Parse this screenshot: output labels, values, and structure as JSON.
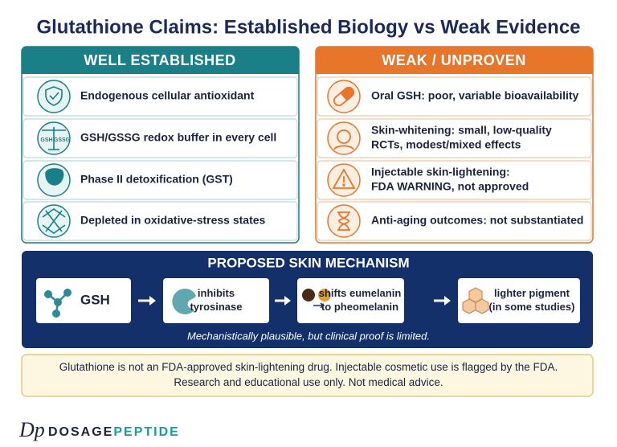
{
  "title": "Glutathione Claims: Established Biology vs Weak Evidence",
  "established": {
    "heading": "WELL ESTABLISHED",
    "icon_labels": [
      "GSH",
      "GSSG"
    ],
    "items": [
      [
        "Endogenous cellular antioxidant"
      ],
      [
        "GSH/GSSG redox buffer in every cell"
      ],
      [
        "Phase II detoxification (GST)"
      ],
      [
        "Depleted in oxidative-stress states"
      ]
    ]
  },
  "weak": {
    "heading": "WEAK / UNPROVEN",
    "items": [
      [
        "Oral GSH: poor, variable bioavailability"
      ],
      [
        "Skin-whitening: small, low-quality",
        "RCTs, modest/mixed effects"
      ],
      [
        "Injectable skin-lightening:",
        "FDA WARNING, not approved"
      ],
      [
        "Anti-aging outcomes: not substantiated"
      ]
    ]
  },
  "mechanism": {
    "heading": "PROPOSED SKIN MECHANISM",
    "steps": [
      [
        "GSH"
      ],
      [
        "inhibits",
        "tyrosinase"
      ],
      [
        "shifts eumelanin",
        "to pheomelanin"
      ],
      [
        "lighter pigment",
        "(in some studies)"
      ]
    ],
    "note": "Mechanistically plausible, but clinical proof is limited."
  },
  "disclaimer": [
    "Glutathione is not an FDA-approved skin-lightening drug. Injectable cosmetic use is flagged by the FDA.",
    "Research and educational use only. Not medical advice."
  ],
  "brand": {
    "mark": "Dp",
    "name_1": "DOSAGE",
    "name_2": "PEPTIDE"
  }
}
